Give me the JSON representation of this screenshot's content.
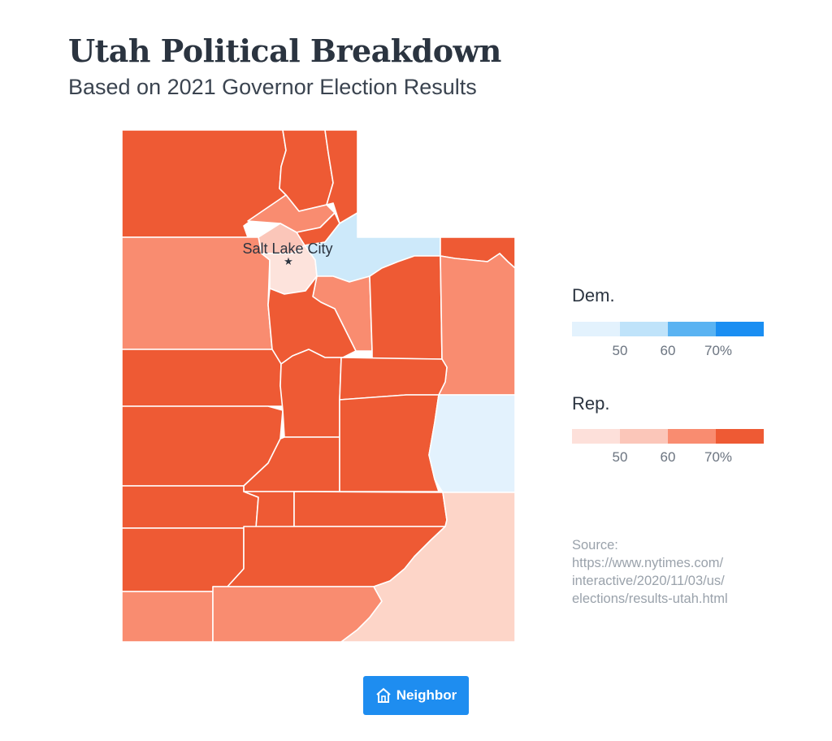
{
  "title": "Utah Political Breakdown",
  "subtitle": "Based on 2021 Governor Election Results",
  "city_label": "Salt Lake City",
  "legend": {
    "dem": {
      "title": "Dem.",
      "colors": [
        "#e3f2fd",
        "#bfe3fa",
        "#5ab3f2",
        "#1a8ef2"
      ],
      "ticks": [
        "50",
        "60",
        "70%"
      ]
    },
    "rep": {
      "title": "Rep.",
      "colors": [
        "#fde0da",
        "#fbc6b9",
        "#f98c70",
        "#ee5a34"
      ],
      "ticks": [
        "50",
        "60",
        "70%"
      ]
    }
  },
  "source": {
    "label": "Source:",
    "lines": [
      "https://www.nytimes.com/",
      "interactive/2020/11/03/us/",
      "elections/results-utah.html"
    ]
  },
  "brand": {
    "name": "Neighbor",
    "icon": "house-icon",
    "color": "#1e8df0"
  },
  "map_colors": {
    "rep_strong": "#ee5a34",
    "rep_medium": "#f98c70",
    "rep_light": "#fdd5c8",
    "rep_lightest": "#fde3dc",
    "dem_light": "#cde9fa",
    "dem_lightest": "#e3f2fd"
  }
}
